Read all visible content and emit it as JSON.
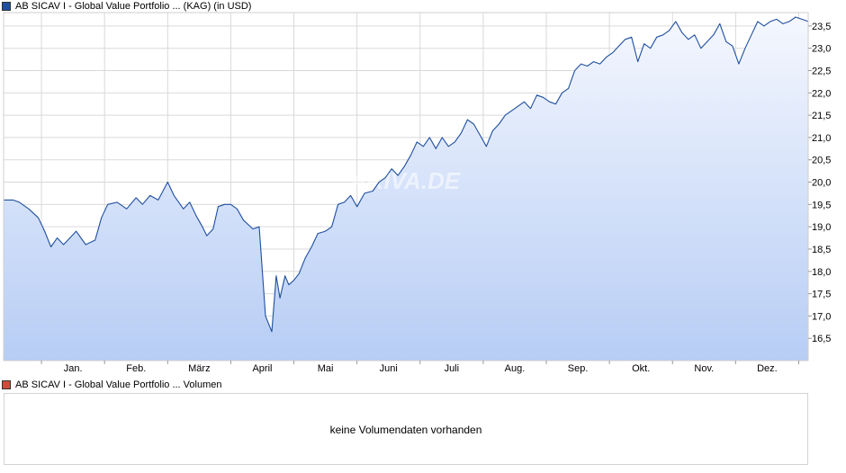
{
  "legend": {
    "price_label": "AB SICAV I - Global Value Portfolio ... (KAG)  (in USD)",
    "price_color": "#1f4f9e",
    "volume_label": "AB SICAV I - Global Value Portfolio ... Volumen",
    "volume_color": "#d04a3c"
  },
  "watermark": "ARIVA.DE",
  "volume_panel": {
    "message": "keine Volumendaten vorhanden"
  },
  "chart_data": {
    "type": "area",
    "title": "",
    "xlabel": "",
    "ylabel": "",
    "ylim": [
      16.0,
      23.8
    ],
    "grid": true,
    "y_axis_position": "right",
    "yticks": [
      "16,5",
      "17,0",
      "17,5",
      "18,0",
      "18,5",
      "19,0",
      "19,5",
      "20,0",
      "20,5",
      "21,0",
      "21,5",
      "22,0",
      "22,5",
      "23,0",
      "23,5"
    ],
    "ytick_values": [
      16.5,
      17.0,
      17.5,
      18.0,
      18.5,
      19.0,
      19.5,
      20.0,
      20.5,
      21.0,
      21.5,
      22.0,
      22.5,
      23.0,
      23.5
    ],
    "xticks": [
      "Jan.",
      "Feb.",
      "März",
      "April",
      "Mai",
      "Juni",
      "Juli",
      "Aug.",
      "Sep.",
      "Okt.",
      "Nov.",
      "Dez."
    ],
    "xtick_positions": [
      0.5,
      1.5,
      2.5,
      3.5,
      4.5,
      5.5,
      6.5,
      7.5,
      8.5,
      9.5,
      10.5,
      11.5
    ],
    "month_boundaries": [
      0,
      1,
      2,
      3,
      4,
      5,
      6,
      7,
      8,
      9,
      10,
      11,
      12
    ],
    "xlim": [
      -0.6,
      12.15
    ],
    "series": [
      {
        "line_color": "#1f4f9e",
        "x": [
          -0.6,
          -0.45,
          -0.35,
          -0.2,
          -0.05,
          0.05,
          0.15,
          0.25,
          0.35,
          0.45,
          0.55,
          0.7,
          0.85,
          0.95,
          1.05,
          1.2,
          1.35,
          1.5,
          1.6,
          1.72,
          1.85,
          2.0,
          2.1,
          2.25,
          2.35,
          2.45,
          2.55,
          2.62,
          2.72,
          2.8,
          2.9,
          3.0,
          3.1,
          3.2,
          3.35,
          3.45,
          3.55,
          3.65,
          3.72,
          3.78,
          3.86,
          3.92,
          4.0,
          4.08,
          4.18,
          4.28,
          4.38,
          4.5,
          4.6,
          4.7,
          4.8,
          4.9,
          5.0,
          5.12,
          5.25,
          5.35,
          5.45,
          5.55,
          5.65,
          5.75,
          5.85,
          5.95,
          6.05,
          6.15,
          6.25,
          6.35,
          6.45,
          6.55,
          6.65,
          6.75,
          6.85,
          6.95,
          7.05,
          7.15,
          7.25,
          7.35,
          7.45,
          7.55,
          7.65,
          7.75,
          7.85,
          7.95,
          8.05,
          8.15,
          8.25,
          8.35,
          8.45,
          8.55,
          8.65,
          8.75,
          8.85,
          8.95,
          9.05,
          9.15,
          9.25,
          9.35,
          9.45,
          9.55,
          9.65,
          9.75,
          9.85,
          9.95,
          10.05,
          10.15,
          10.25,
          10.35,
          10.45,
          10.55,
          10.65,
          10.75,
          10.85,
          10.95,
          11.05,
          11.15,
          11.25,
          11.35,
          11.45,
          11.55,
          11.65,
          11.75,
          11.85,
          11.95,
          12.05,
          12.15
        ],
        "values": [
          19.6,
          19.6,
          19.55,
          19.4,
          19.2,
          18.9,
          18.55,
          18.75,
          18.6,
          18.75,
          18.9,
          18.6,
          18.7,
          19.2,
          19.5,
          19.55,
          19.4,
          19.65,
          19.5,
          19.7,
          19.6,
          20.0,
          19.7,
          19.4,
          19.55,
          19.25,
          19.0,
          18.8,
          18.95,
          19.45,
          19.5,
          19.5,
          19.4,
          19.15,
          18.95,
          19.0,
          17.0,
          16.65,
          17.9,
          17.4,
          17.9,
          17.7,
          17.8,
          17.95,
          18.3,
          18.55,
          18.85,
          18.9,
          19.0,
          19.5,
          19.55,
          19.7,
          19.45,
          19.75,
          19.8,
          20.0,
          20.1,
          20.3,
          20.15,
          20.35,
          20.6,
          20.9,
          20.8,
          21.0,
          20.75,
          21.0,
          20.8,
          20.9,
          21.1,
          21.4,
          21.3,
          21.05,
          20.8,
          21.15,
          21.3,
          21.5,
          21.6,
          21.7,
          21.8,
          21.65,
          21.95,
          21.9,
          21.8,
          21.75,
          22.0,
          22.1,
          22.5,
          22.65,
          22.6,
          22.7,
          22.65,
          22.8,
          22.9,
          23.05,
          23.2,
          23.25,
          22.7,
          23.1,
          23.0,
          23.25,
          23.3,
          23.4,
          23.6,
          23.35,
          23.2,
          23.3,
          23.0,
          23.15,
          23.3,
          23.55,
          23.15,
          23.05,
          22.65,
          23.0,
          23.3,
          23.6,
          23.5,
          23.6,
          23.65,
          23.55,
          23.6,
          23.7,
          23.65,
          23.6
        ]
      }
    ]
  }
}
